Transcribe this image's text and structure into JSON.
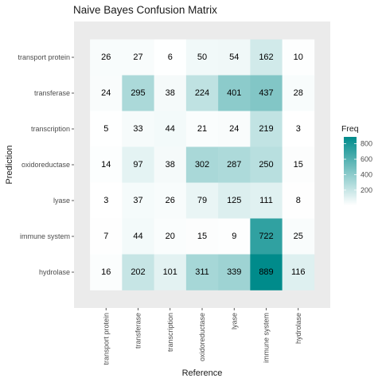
{
  "chart_data": {
    "type": "heatmap",
    "title": "Naive Bayes Confusion Matrix",
    "xlabel": "Reference",
    "ylabel": "Prediction",
    "x_categories": [
      "transport protein",
      "transferase",
      "transcription",
      "oxidoreductase",
      "lyase",
      "immune system",
      "hydrolase"
    ],
    "y_categories": [
      "transport protein",
      "transferase",
      "transcription",
      "oxidoreductase",
      "lyase",
      "immune system",
      "hydrolase"
    ],
    "values": [
      [
        26,
        27,
        6,
        50,
        54,
        162,
        10
      ],
      [
        24,
        295,
        38,
        224,
        401,
        437,
        28
      ],
      [
        5,
        33,
        44,
        21,
        24,
        219,
        3
      ],
      [
        14,
        97,
        38,
        302,
        287,
        250,
        15
      ],
      [
        3,
        37,
        26,
        79,
        125,
        111,
        8
      ],
      [
        7,
        44,
        20,
        15,
        9,
        722,
        25
      ],
      [
        16,
        202,
        101,
        311,
        339,
        889,
        116
      ]
    ],
    "legend": {
      "title": "Freq",
      "ticks": [
        200,
        400,
        600,
        800
      ],
      "min": 3,
      "max": 889,
      "position": "right"
    },
    "colors": {
      "low": "#ffffff",
      "high": "#008b8b",
      "panel_background": "#ebebeb"
    },
    "grid": false
  }
}
